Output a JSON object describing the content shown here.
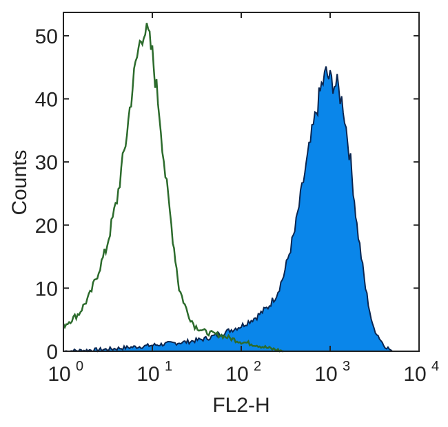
{
  "chart_data": {
    "type": "area",
    "title": "",
    "xlabel": "FL2-H",
    "ylabel": "Counts",
    "xscale": "log",
    "xlim": [
      1,
      10000
    ],
    "ylim": [
      0,
      53.7
    ],
    "xticks": [
      1,
      10,
      100,
      1000,
      10000
    ],
    "xtick_labels": [
      {
        "base": "10",
        "exp": "0"
      },
      {
        "base": "10",
        "exp": "1"
      },
      {
        "base": "10",
        "exp": "2"
      },
      {
        "base": "10",
        "exp": "3"
      },
      {
        "base": "10",
        "exp": "4"
      }
    ],
    "yticks": [
      0,
      10,
      20,
      30,
      40,
      50
    ],
    "ytick_labels": [
      "0",
      "10",
      "20",
      "30",
      "40",
      "50"
    ],
    "grid": false,
    "series": [
      {
        "style": "filled",
        "fill_color": "#0a86ea",
        "line_color": "#0b2650",
        "x": [
          1,
          3,
          8,
          15,
          25,
          40,
          60,
          100,
          150,
          200,
          250,
          300,
          400,
          500,
          600,
          700,
          800,
          900,
          1000,
          1200,
          1400,
          1700,
          2000,
          2500,
          3000,
          4000,
          5000
        ],
        "y": [
          0,
          0.3,
          0.8,
          1.2,
          1.5,
          2,
          2.8,
          4,
          5.5,
          7,
          9,
          12,
          19,
          27,
          33,
          38,
          42,
          44,
          43,
          42,
          39,
          30,
          20,
          10,
          4,
          1,
          0
        ]
      },
      {
        "style": "outline",
        "line_color": "#2c6b2c",
        "x": [
          1,
          1.5,
          2,
          3,
          4,
          5,
          6,
          7,
          8,
          9,
          10,
          12,
          14,
          17,
          20,
          25,
          30,
          40,
          60,
          100,
          150,
          200,
          300
        ],
        "y": [
          4,
          6,
          9,
          16,
          24,
          33,
          42,
          48,
          51,
          50,
          47,
          38,
          28,
          18,
          10,
          6,
          4,
          3,
          2.5,
          1.5,
          1,
          0.5,
          0
        ]
      }
    ]
  }
}
